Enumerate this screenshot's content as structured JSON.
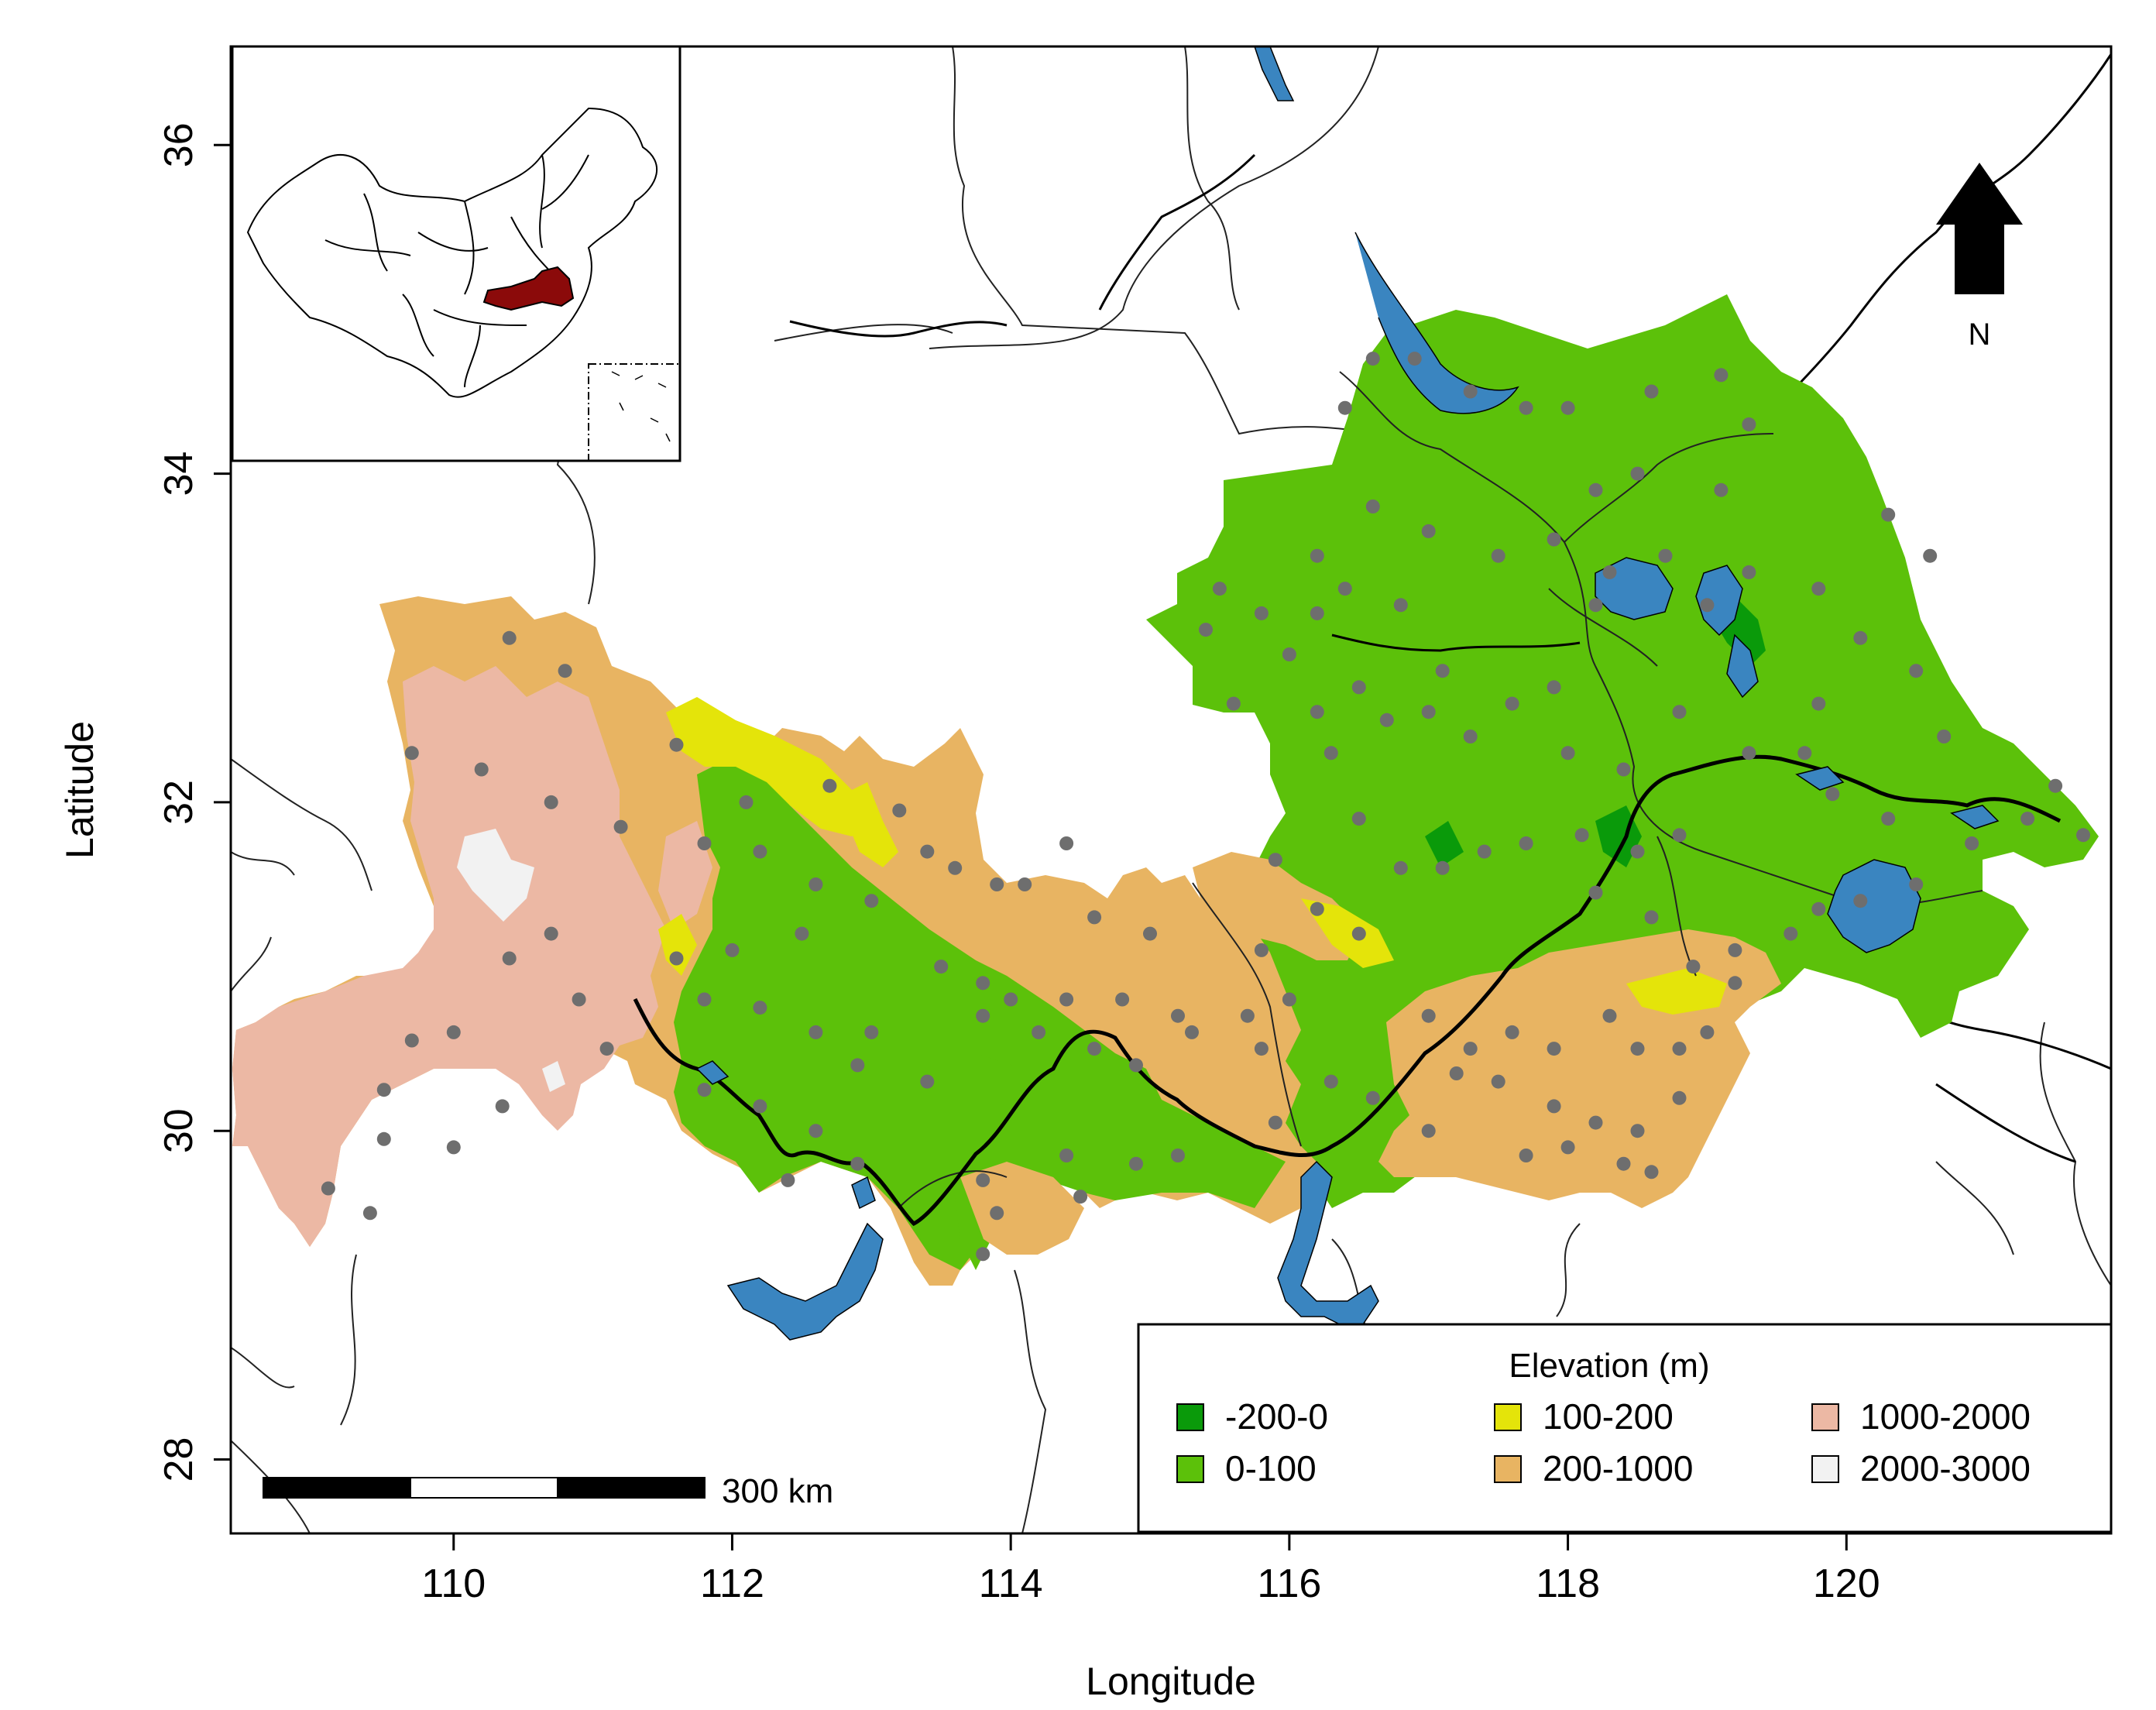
{
  "map": {
    "x_axis": {
      "label": "Longitude",
      "range": [
        108.4,
        121.9
      ],
      "ticks": [
        {
          "value": 110,
          "label": "110"
        },
        {
          "value": 112,
          "label": "112"
        },
        {
          "value": 114,
          "label": "114"
        },
        {
          "value": 116,
          "label": "116"
        },
        {
          "value": 118,
          "label": "118"
        },
        {
          "value": 120,
          "label": "120"
        }
      ]
    },
    "y_axis": {
      "label": "Latitude",
      "range": [
        27.55,
        36.6
      ],
      "ticks": [
        {
          "value": 28,
          "label": "28"
        },
        {
          "value": 30,
          "label": "30"
        },
        {
          "value": 32,
          "label": "32"
        },
        {
          "value": 34,
          "label": "34"
        },
        {
          "value": 36,
          "label": "36"
        }
      ]
    },
    "north_arrow": {
      "label": "N"
    },
    "scale_bar": {
      "label": "300 km"
    },
    "legend": {
      "title": "Elevation (m)",
      "placement": "bottom-right",
      "items": [
        {
          "label": "-200-0",
          "color": "#0a9a0a"
        },
        {
          "label": "0-100",
          "color": "#5cc10a"
        },
        {
          "label": "100-200",
          "color": "#e4e40a"
        },
        {
          "label": "200-1000",
          "color": "#e8b462"
        },
        {
          "label": "1000-2000",
          "color": "#ecb8a4"
        },
        {
          "label": "2000-3000",
          "color": "#f2f2f2"
        }
      ]
    },
    "colors": {
      "water": "#3a85c0",
      "stations": "#6e6e6e",
      "inset_highlight": "#8b0a0a"
    },
    "stations": [
      [
        110.4,
        33.0
      ],
      [
        110.8,
        32.8
      ],
      [
        109.7,
        32.3
      ],
      [
        110.2,
        32.2
      ],
      [
        110.7,
        32.0
      ],
      [
        111.2,
        31.85
      ],
      [
        110.7,
        31.2
      ],
      [
        110.4,
        31.05
      ],
      [
        110.9,
        30.8
      ],
      [
        110.0,
        30.6
      ],
      [
        109.7,
        30.55
      ],
      [
        111.1,
        30.5
      ],
      [
        109.5,
        30.25
      ],
      [
        109.5,
        29.95
      ],
      [
        110.0,
        29.9
      ],
      [
        110.35,
        30.15
      ],
      [
        109.1,
        29.65
      ],
      [
        109.4,
        29.5
      ],
      [
        111.6,
        32.35
      ],
      [
        111.8,
        31.75
      ],
      [
        112.1,
        32.0
      ],
      [
        112.7,
        32.1
      ],
      [
        112.2,
        31.7
      ],
      [
        112.6,
        31.5
      ],
      [
        113.4,
        31.7
      ],
      [
        113.0,
        31.4
      ],
      [
        113.6,
        31.6
      ],
      [
        113.9,
        31.5
      ],
      [
        114.1,
        31.5
      ],
      [
        114.6,
        31.3
      ],
      [
        115.0,
        31.2
      ],
      [
        112.5,
        31.2
      ],
      [
        112.0,
        31.1
      ],
      [
        111.6,
        31.05
      ],
      [
        111.8,
        30.8
      ],
      [
        112.2,
        30.75
      ],
      [
        112.6,
        30.6
      ],
      [
        113.0,
        30.6
      ],
      [
        113.5,
        31.0
      ],
      [
        113.8,
        30.9
      ],
      [
        114.0,
        30.8
      ],
      [
        114.4,
        30.8
      ],
      [
        114.8,
        30.8
      ],
      [
        115.2,
        30.7
      ],
      [
        115.7,
        30.7
      ],
      [
        111.8,
        30.25
      ],
      [
        112.2,
        30.15
      ],
      [
        112.6,
        30.0
      ],
      [
        112.9,
        30.4
      ],
      [
        113.4,
        30.3
      ],
      [
        113.8,
        30.7
      ],
      [
        114.2,
        30.6
      ],
      [
        114.6,
        30.5
      ],
      [
        114.9,
        30.4
      ],
      [
        115.3,
        30.6
      ],
      [
        115.8,
        30.5
      ],
      [
        112.4,
        29.7
      ],
      [
        112.9,
        29.8
      ],
      [
        113.8,
        29.7
      ],
      [
        113.9,
        29.5
      ],
      [
        114.4,
        29.85
      ],
      [
        114.5,
        29.6
      ],
      [
        114.9,
        29.8
      ],
      [
        115.2,
        29.85
      ],
      [
        113.8,
        29.25
      ],
      [
        115.9,
        30.05
      ],
      [
        115.5,
        33.3
      ],
      [
        115.8,
        33.15
      ],
      [
        115.4,
        33.05
      ],
      [
        116.0,
        32.9
      ],
      [
        115.6,
        32.6
      ],
      [
        116.2,
        33.15
      ],
      [
        116.2,
        33.5
      ],
      [
        116.4,
        33.3
      ],
      [
        116.8,
        33.2
      ],
      [
        116.6,
        33.8
      ],
      [
        117.0,
        33.65
      ],
      [
        117.5,
        33.5
      ],
      [
        116.5,
        32.7
      ],
      [
        116.7,
        32.5
      ],
      [
        117.0,
        32.55
      ],
      [
        117.3,
        32.4
      ],
      [
        117.6,
        32.6
      ],
      [
        117.9,
        32.7
      ],
      [
        116.2,
        32.55
      ],
      [
        116.3,
        32.3
      ],
      [
        115.9,
        31.65
      ],
      [
        116.2,
        31.35
      ],
      [
        116.5,
        31.2
      ],
      [
        116.8,
        31.6
      ],
      [
        117.1,
        31.6
      ],
      [
        117.4,
        31.7
      ],
      [
        117.7,
        31.75
      ],
      [
        118.1,
        31.8
      ],
      [
        118.5,
        31.7
      ],
      [
        118.8,
        31.8
      ],
      [
        116.4,
        34.4
      ],
      [
        116.6,
        34.7
      ],
      [
        116.9,
        34.7
      ],
      [
        117.3,
        34.5
      ],
      [
        117.7,
        34.4
      ],
      [
        118.0,
        34.4
      ],
      [
        118.6,
        34.5
      ],
      [
        119.1,
        34.6
      ],
      [
        119.3,
        34.3
      ],
      [
        118.5,
        34.0
      ],
      [
        118.2,
        33.9
      ],
      [
        117.9,
        33.6
      ],
      [
        118.3,
        33.4
      ],
      [
        118.7,
        33.5
      ],
      [
        119.0,
        33.2
      ],
      [
        119.3,
        33.4
      ],
      [
        119.8,
        33.3
      ],
      [
        120.3,
        33.75
      ],
      [
        120.6,
        33.5
      ],
      [
        120.1,
        33.0
      ],
      [
        120.5,
        32.8
      ],
      [
        120.7,
        32.4
      ],
      [
        119.8,
        32.6
      ],
      [
        119.3,
        32.3
      ],
      [
        118.8,
        32.55
      ],
      [
        118.4,
        32.2
      ],
      [
        118.0,
        32.3
      ],
      [
        118.6,
        31.3
      ],
      [
        118.2,
        31.45
      ],
      [
        118.9,
        31.0
      ],
      [
        119.2,
        31.1
      ],
      [
        119.6,
        31.2
      ],
      [
        119.8,
        31.35
      ],
      [
        120.1,
        31.4
      ],
      [
        120.5,
        31.5
      ],
      [
        120.9,
        31.75
      ],
      [
        121.3,
        31.9
      ],
      [
        121.5,
        32.1
      ],
      [
        121.7,
        31.8
      ],
      [
        120.3,
        31.9
      ],
      [
        119.9,
        32.05
      ],
      [
        117.0,
        30.7
      ],
      [
        117.3,
        30.5
      ],
      [
        117.6,
        30.6
      ],
      [
        117.9,
        30.5
      ],
      [
        118.3,
        30.7
      ],
      [
        118.5,
        30.5
      ],
      [
        118.8,
        30.5
      ],
      [
        119.0,
        30.6
      ],
      [
        119.2,
        30.9
      ],
      [
        117.2,
        30.35
      ],
      [
        117.5,
        30.3
      ],
      [
        117.9,
        30.15
      ],
      [
        118.2,
        30.05
      ],
      [
        118.5,
        30.0
      ],
      [
        118.8,
        30.2
      ],
      [
        118.0,
        29.9
      ],
      [
        118.4,
        29.8
      ],
      [
        118.6,
        29.75
      ],
      [
        117.7,
        29.85
      ],
      [
        117.0,
        30.0
      ],
      [
        116.6,
        30.2
      ],
      [
        116.3,
        30.3
      ],
      [
        115.8,
        31.1
      ],
      [
        116.0,
        30.8
      ],
      [
        113.2,
        31.95
      ],
      [
        114.4,
        31.75
      ],
      [
        119.7,
        32.3
      ],
      [
        119.1,
        33.9
      ],
      [
        118.2,
        33.2
      ],
      [
        117.1,
        32.8
      ],
      [
        116.5,
        31.9
      ]
    ]
  },
  "inset": {}
}
